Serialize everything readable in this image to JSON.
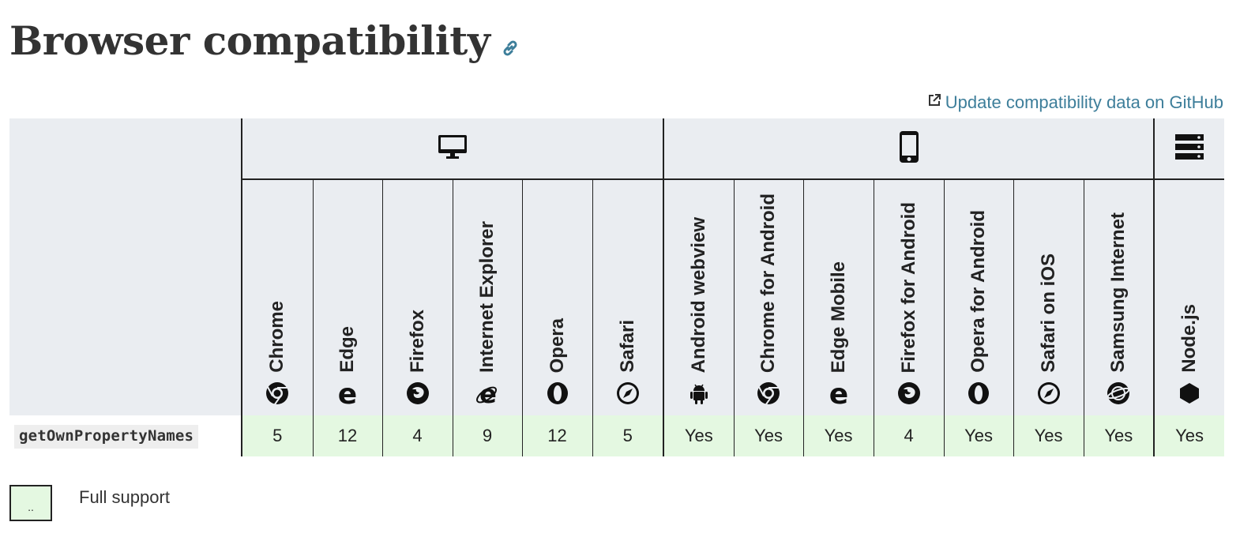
{
  "page": {
    "title": "Browser compatibility",
    "update_link": "Update compatibility data on GitHub"
  },
  "platforms": [
    {
      "name": "desktop",
      "icon": "desktop-icon"
    },
    {
      "name": "mobile",
      "icon": "mobile-icon"
    },
    {
      "name": "server",
      "icon": "server-icon"
    }
  ],
  "browsers": [
    {
      "label": "Chrome",
      "icon": "chrome-icon"
    },
    {
      "label": "Edge",
      "icon": "edge-icon"
    },
    {
      "label": "Firefox",
      "icon": "firefox-icon"
    },
    {
      "label": "Internet Explorer",
      "icon": "internet-explorer-icon"
    },
    {
      "label": "Opera",
      "icon": "opera-icon"
    },
    {
      "label": "Safari",
      "icon": "safari-icon"
    },
    {
      "label": "Android webview",
      "icon": "android-icon"
    },
    {
      "label": "Chrome for Android",
      "icon": "chrome-icon"
    },
    {
      "label": "Edge Mobile",
      "icon": "edge-icon"
    },
    {
      "label": "Firefox for Android",
      "icon": "firefox-icon"
    },
    {
      "label": "Opera for Android",
      "icon": "opera-icon"
    },
    {
      "label": "Safari on iOS",
      "icon": "safari-icon"
    },
    {
      "label": "Samsung Internet",
      "icon": "samsung-internet-icon"
    },
    {
      "label": "Node.js",
      "icon": "nodejs-icon"
    }
  ],
  "feature": {
    "name": "getOwnPropertyNames",
    "support": [
      "5",
      "12",
      "4",
      "9",
      "12",
      "5",
      "Yes",
      "Yes",
      "Yes",
      "4",
      "Yes",
      "Yes",
      "Yes",
      "Yes"
    ]
  },
  "legend": {
    "swatch_text": "..",
    "label": "Full support"
  },
  "colors": {
    "header_bg": "#eaedf1",
    "full_support_bg": "#e4f8e1",
    "link": "#3d7e9a"
  }
}
